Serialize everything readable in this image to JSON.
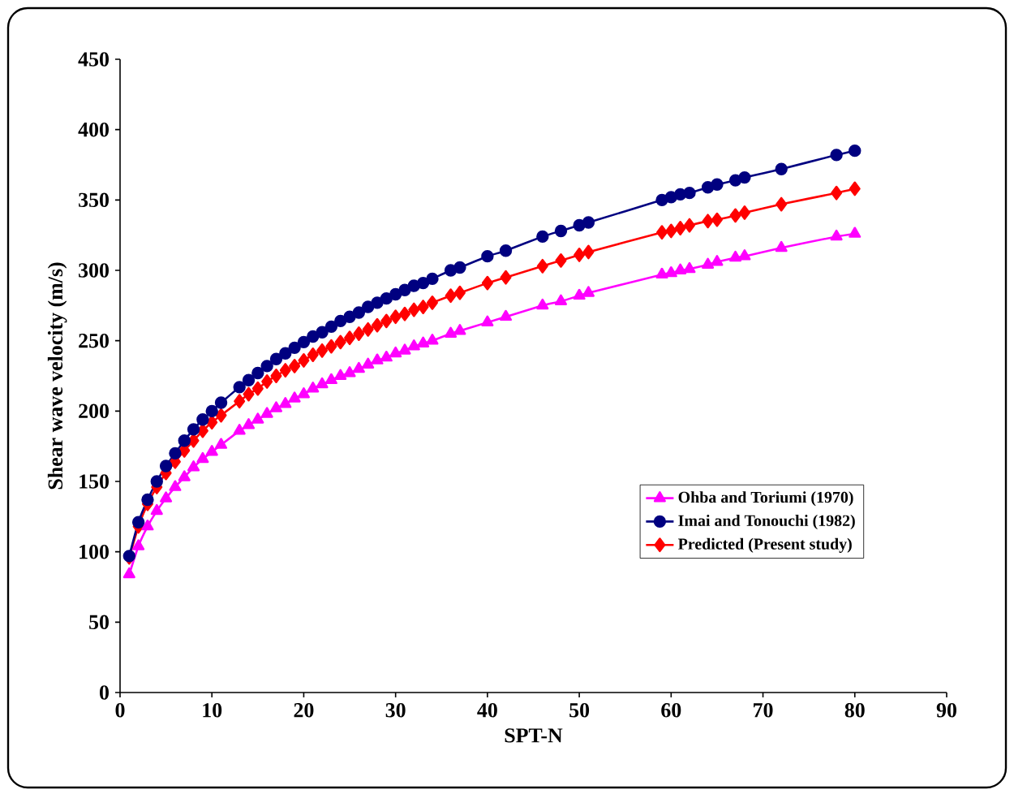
{
  "chart_data": {
    "type": "line",
    "xlabel": "SPT-N",
    "ylabel": "Shear wave velocity (m/s)",
    "x": [
      1,
      2,
      3,
      4,
      5,
      6,
      7,
      8,
      9,
      10,
      11,
      13,
      14,
      15,
      16,
      17,
      18,
      19,
      20,
      21,
      22,
      23,
      24,
      25,
      26,
      27,
      28,
      29,
      30,
      31,
      32,
      33,
      34,
      36,
      37,
      40,
      42,
      46,
      48,
      50,
      51,
      59,
      60,
      61,
      62,
      64,
      65,
      67,
      68,
      72,
      78,
      80
    ],
    "series": [
      {
        "name": "Ohba and Toriumi (1970)",
        "color": "#ff00ff",
        "marker": "triangle",
        "values": [
          84,
          104,
          118,
          129,
          138,
          146,
          153,
          160,
          166,
          171,
          176,
          186,
          190,
          194,
          198,
          202,
          205,
          209,
          212,
          216,
          219,
          222,
          225,
          227,
          230,
          233,
          236,
          238,
          241,
          243,
          246,
          248,
          250,
          255,
          257,
          263,
          267,
          275,
          278,
          282,
          284,
          297,
          298,
          300,
          301,
          304,
          306,
          309,
          310,
          316,
          324,
          326
        ]
      },
      {
        "name": "Imai and Tonouchi (1982)",
        "color": "#000080",
        "marker": "circle",
        "values": [
          97,
          121,
          137,
          150,
          161,
          170,
          179,
          187,
          194,
          200,
          206,
          217,
          222,
          227,
          232,
          237,
          241,
          245,
          249,
          253,
          256,
          260,
          264,
          267,
          270,
          274,
          277,
          280,
          283,
          286,
          289,
          291,
          294,
          300,
          302,
          310,
          314,
          324,
          328,
          332,
          334,
          350,
          352,
          354,
          355,
          359,
          361,
          364,
          366,
          372,
          382,
          385
        ]
      },
      {
        "name": "Predicted (Present study)",
        "color": "#ff0000",
        "marker": "diamond",
        "values": [
          96,
          118,
          134,
          146,
          156,
          164,
          172,
          179,
          186,
          192,
          197,
          207,
          212,
          216,
          221,
          225,
          229,
          232,
          236,
          240,
          243,
          246,
          249,
          252,
          255,
          258,
          261,
          264,
          267,
          269,
          272,
          274,
          277,
          282,
          284,
          291,
          295,
          303,
          307,
          311,
          313,
          327,
          328,
          330,
          332,
          335,
          336,
          339,
          341,
          347,
          355,
          358
        ]
      }
    ],
    "xlim": [
      0,
      90
    ],
    "xticks": [
      0,
      10,
      20,
      30,
      40,
      50,
      60,
      70,
      80,
      90
    ],
    "ylim": [
      0,
      450
    ],
    "yticks": [
      0,
      50,
      100,
      150,
      200,
      250,
      300,
      350,
      400,
      450
    ],
    "legend": "right",
    "grid": false,
    "line_style": "solid"
  }
}
